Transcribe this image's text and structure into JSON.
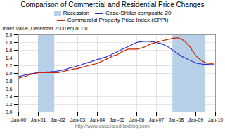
{
  "chart_data": {
    "type": "line",
    "title": "Comparison of Commercial and Residential Price Changes",
    "ylabel": "Index Value, December 2000 equal 1.0",
    "caption": "http://www.calculatedriskblog.com/",
    "legend": "top",
    "grid": true,
    "xlim": [
      2000.0,
      2010.0
    ],
    "xticks": [
      {
        "value": 2000.0,
        "label": "Jan-00"
      },
      {
        "value": 2001.0,
        "label": "Jan-01"
      },
      {
        "value": 2002.0,
        "label": "Jan-02"
      },
      {
        "value": 2003.0,
        "label": "Jan-03"
      },
      {
        "value": 2004.0,
        "label": "Jan-04"
      },
      {
        "value": 2005.0,
        "label": "Jan-05"
      },
      {
        "value": 2006.0,
        "label": "Jan-06"
      },
      {
        "value": 2007.0,
        "label": "Jan-07"
      },
      {
        "value": 2008.0,
        "label": "Jan-08"
      },
      {
        "value": 2009.0,
        "label": "Jan-09"
      },
      {
        "value": 2010.0,
        "label": "Jan-10"
      }
    ],
    "ylim": [
      0.0,
      2.0
    ],
    "yticks": [
      {
        "value": 0.0,
        "label": "0.0"
      },
      {
        "value": 0.2,
        "label": "0.2"
      },
      {
        "value": 0.4,
        "label": "0.4"
      },
      {
        "value": 0.6,
        "label": "0.6"
      },
      {
        "value": 0.8,
        "label": "0.8"
      },
      {
        "value": 1.0,
        "label": "1.0"
      },
      {
        "value": 1.2,
        "label": "1.2"
      },
      {
        "value": 1.4,
        "label": "1.4"
      },
      {
        "value": 1.6,
        "label": "1.6"
      },
      {
        "value": 1.8,
        "label": "1.8"
      },
      {
        "value": 2.0,
        "label": "2.0"
      }
    ],
    "recessions": {
      "name": "Recession",
      "color": "#b8cfe8",
      "periods": [
        [
          2001.0,
          2001.83
        ],
        [
          2007.83,
          2009.5
        ]
      ]
    },
    "x": [
      2000.0,
      2000.08,
      2000.17,
      2000.25,
      2000.33,
      2000.42,
      2000.5,
      2000.58,
      2000.67,
      2000.75,
      2000.83,
      2000.92,
      2001.0,
      2001.08,
      2001.17,
      2001.25,
      2001.33,
      2001.42,
      2001.5,
      2001.58,
      2001.67,
      2001.75,
      2001.83,
      2001.92,
      2002.0,
      2002.08,
      2002.17,
      2002.25,
      2002.33,
      2002.42,
      2002.5,
      2002.58,
      2002.67,
      2002.75,
      2002.83,
      2002.92,
      2003.0,
      2003.08,
      2003.17,
      2003.25,
      2003.33,
      2003.42,
      2003.5,
      2003.58,
      2003.67,
      2003.75,
      2003.83,
      2003.92,
      2004.0,
      2004.08,
      2004.17,
      2004.25,
      2004.33,
      2004.42,
      2004.5,
      2004.58,
      2004.67,
      2004.75,
      2004.83,
      2004.92,
      2005.0,
      2005.08,
      2005.17,
      2005.25,
      2005.33,
      2005.42,
      2005.5,
      2005.58,
      2005.67,
      2005.75,
      2005.83,
      2005.92,
      2006.0,
      2006.08,
      2006.17,
      2006.25,
      2006.33,
      2006.42,
      2006.5,
      2006.58,
      2006.67,
      2006.75,
      2006.83,
      2006.92,
      2007.0,
      2007.08,
      2007.17,
      2007.25,
      2007.33,
      2007.42,
      2007.5,
      2007.58,
      2007.67,
      2007.75,
      2007.83,
      2007.92,
      2008.0,
      2008.08,
      2008.17,
      2008.25,
      2008.33,
      2008.42,
      2008.5,
      2008.58,
      2008.67,
      2008.75,
      2008.83,
      2008.92,
      2009.0,
      2009.08,
      2009.17,
      2009.25,
      2009.33,
      2009.42,
      2009.5,
      2009.58,
      2009.67,
      2009.75,
      2009.83,
      2009.92
    ],
    "series": [
      {
        "name": "Case-Shiller composite 20",
        "color": "#3333cc",
        "values": [
          0.92,
          0.93,
          0.94,
          0.95,
          0.96,
          0.97,
          0.98,
          0.99,
          1.0,
          1.0,
          1.01,
          1.01,
          1.02,
          1.02,
          1.03,
          1.03,
          1.03,
          1.04,
          1.04,
          1.04,
          1.05,
          1.05,
          1.05,
          1.06,
          1.06,
          1.07,
          1.08,
          1.09,
          1.1,
          1.11,
          1.12,
          1.14,
          1.15,
          1.16,
          1.17,
          1.18,
          1.2,
          1.21,
          1.22,
          1.24,
          1.25,
          1.26,
          1.28,
          1.29,
          1.3,
          1.32,
          1.33,
          1.35,
          1.36,
          1.37,
          1.38,
          1.4,
          1.41,
          1.42,
          1.44,
          1.46,
          1.47,
          1.5,
          1.52,
          1.54,
          1.56,
          1.58,
          1.6,
          1.62,
          1.64,
          1.66,
          1.68,
          1.7,
          1.72,
          1.74,
          1.76,
          1.78,
          1.8,
          1.81,
          1.82,
          1.82,
          1.83,
          1.83,
          1.83,
          1.83,
          1.83,
          1.82,
          1.82,
          1.81,
          1.8,
          1.79,
          1.78,
          1.77,
          1.75,
          1.73,
          1.71,
          1.69,
          1.66,
          1.63,
          1.6,
          1.57,
          1.54,
          1.51,
          1.48,
          1.45,
          1.43,
          1.41,
          1.39,
          1.37,
          1.35,
          1.33,
          1.31,
          1.29,
          1.27,
          1.26,
          1.25,
          1.25,
          1.24,
          1.24,
          1.24,
          1.24,
          1.23,
          1.23,
          1.23,
          1.23
        ]
      },
      {
        "name": "Commercial Property Price Index (CPPI)",
        "color": "#cc2200",
        "values": [
          0.88,
          0.89,
          0.9,
          0.91,
          0.92,
          0.94,
          0.96,
          0.97,
          0.98,
          0.99,
          1.0,
          1.01,
          1.02,
          1.02,
          1.02,
          1.02,
          1.02,
          1.02,
          1.02,
          1.02,
          1.02,
          1.02,
          1.02,
          1.02,
          1.02,
          1.03,
          1.04,
          1.05,
          1.06,
          1.07,
          1.08,
          1.09,
          1.1,
          1.11,
          1.12,
          1.12,
          1.13,
          1.14,
          1.15,
          1.16,
          1.17,
          1.18,
          1.2,
          1.21,
          1.22,
          1.23,
          1.24,
          1.25,
          1.26,
          1.28,
          1.3,
          1.32,
          1.34,
          1.36,
          1.38,
          1.4,
          1.42,
          1.44,
          1.46,
          1.47,
          1.48,
          1.51,
          1.54,
          1.56,
          1.58,
          1.6,
          1.62,
          1.63,
          1.63,
          1.63,
          1.63,
          1.63,
          1.63,
          1.64,
          1.65,
          1.66,
          1.67,
          1.69,
          1.71,
          1.73,
          1.75,
          1.77,
          1.78,
          1.79,
          1.8,
          1.82,
          1.83,
          1.84,
          1.85,
          1.86,
          1.87,
          1.88,
          1.89,
          1.9,
          1.91,
          1.91,
          1.92,
          1.92,
          1.91,
          1.89,
          1.87,
          1.84,
          1.8,
          1.76,
          1.71,
          1.65,
          1.58,
          1.52,
          1.46,
          1.42,
          1.38,
          1.35,
          1.32,
          1.3,
          1.28,
          1.27,
          1.26,
          1.26,
          1.25,
          1.25
        ]
      }
    ]
  }
}
